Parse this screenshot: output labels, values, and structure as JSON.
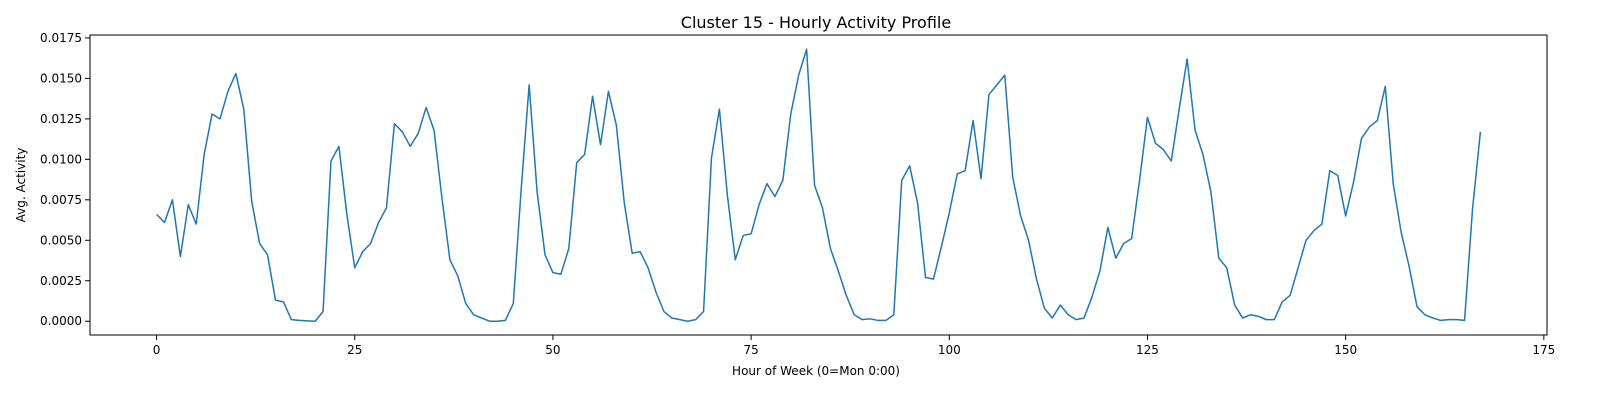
{
  "chart_data": {
    "type": "line",
    "title": "Cluster 15 - Hourly Activity Profile",
    "xlabel": "Hour of Week (0=Mon 0:00)",
    "ylabel": "Avg. Activity",
    "xlim": [
      -8.4,
      175.4
    ],
    "ylim": [
      -0.00085,
      0.01768
    ],
    "xticks": [
      0,
      25,
      50,
      75,
      100,
      125,
      150,
      175
    ],
    "xtick_labels": [
      "0",
      "25",
      "50",
      "75",
      "100",
      "125",
      "150",
      "175"
    ],
    "yticks": [
      0,
      0.0025,
      0.005,
      0.0075,
      0.01,
      0.0125,
      0.015,
      0.0175
    ],
    "ytick_labels": [
      "0.0000",
      "0.0025",
      "0.0050",
      "0.0075",
      "0.0100",
      "0.0125",
      "0.0150",
      "0.0175"
    ],
    "grid": false,
    "legend": "none",
    "line_color": "#1f77b4",
    "series": [
      {
        "x": [
          0,
          1,
          2,
          3,
          4,
          5,
          6,
          7,
          8,
          9,
          10,
          11,
          12,
          13,
          14,
          15,
          16,
          17,
          18,
          19,
          20,
          21,
          22,
          23,
          24,
          25,
          26,
          27,
          28,
          29,
          30,
          31,
          32,
          33,
          34,
          35,
          36,
          37,
          38,
          39,
          40,
          41,
          42,
          43,
          44,
          45,
          46,
          47,
          48,
          49,
          50,
          51,
          52,
          53,
          54,
          55,
          56,
          57,
          58,
          59,
          60,
          61,
          62,
          63,
          64,
          65,
          66,
          67,
          68,
          69,
          70,
          71,
          72,
          73,
          74,
          75,
          76,
          77,
          78,
          79,
          80,
          81,
          82,
          83,
          84,
          85,
          86,
          87,
          88,
          89,
          90,
          91,
          92,
          93,
          94,
          95,
          96,
          97,
          98,
          99,
          100,
          101,
          102,
          103,
          104,
          105,
          106,
          107,
          108,
          109,
          110,
          111,
          112,
          113,
          114,
          115,
          116,
          117,
          118,
          119,
          120,
          121,
          122,
          123,
          124,
          125,
          126,
          127,
          128,
          129,
          130,
          131,
          132,
          133,
          134,
          135,
          136,
          137,
          138,
          139,
          140,
          141,
          142,
          143,
          144,
          145,
          146,
          147,
          148,
          149,
          150,
          151,
          152,
          153,
          154,
          155,
          156,
          157,
          158,
          159,
          160,
          161,
          162,
          163,
          164,
          165,
          166,
          167
        ],
        "values": [
          0.0066,
          0.0061,
          0.0075,
          0.004,
          0.0072,
          0.006,
          0.0103,
          0.0128,
          0.0125,
          0.0142,
          0.0153,
          0.0131,
          0.0074,
          0.0048,
          0.0041,
          0.0013,
          0.0012,
          0.0001,
          5e-05,
          2e-05,
          0.0,
          0.0006,
          0.0099,
          0.0108,
          0.0066,
          0.0033,
          0.0043,
          0.0048,
          0.0061,
          0.007,
          0.0122,
          0.0117,
          0.0108,
          0.0116,
          0.0132,
          0.0118,
          0.0076,
          0.0038,
          0.0028,
          0.0011,
          0.0004,
          0.0002,
          0.0,
          0.0,
          5e-05,
          0.0011,
          0.0082,
          0.0146,
          0.008,
          0.0041,
          0.003,
          0.0029,
          0.0045,
          0.0098,
          0.0103,
          0.0139,
          0.0109,
          0.0142,
          0.0121,
          0.0073,
          0.0042,
          0.0043,
          0.0033,
          0.0018,
          0.0006,
          0.0002,
          0.0001,
          0.0,
          0.0001,
          0.0006,
          0.0101,
          0.0131,
          0.0078,
          0.0038,
          0.0053,
          0.0054,
          0.0072,
          0.0085,
          0.0077,
          0.0087,
          0.0128,
          0.0152,
          0.0168,
          0.0084,
          0.007,
          0.0045,
          0.0031,
          0.0016,
          0.0004,
          0.0001,
          0.00015,
          5e-05,
          5e-05,
          0.0004,
          0.0087,
          0.0096,
          0.0073,
          0.0027,
          0.0026,
          0.0046,
          0.0067,
          0.0091,
          0.0093,
          0.0124,
          0.0088,
          0.014,
          0.0146,
          0.0152,
          0.0089,
          0.0065,
          0.005,
          0.0026,
          0.0008,
          0.0002,
          0.001,
          0.0004,
          0.0001,
          0.0002,
          0.0015,
          0.0031,
          0.0058,
          0.0039,
          0.0048,
          0.0051,
          0.0087,
          0.0126,
          0.011,
          0.0106,
          0.0099,
          0.0131,
          0.0162,
          0.0118,
          0.0103,
          0.008,
          0.0039,
          0.0033,
          0.001,
          0.0002,
          0.0004,
          0.0003,
          0.0001,
          0.0001,
          0.0012,
          0.0016,
          0.0033,
          0.005,
          0.0056,
          0.006,
          0.0093,
          0.009,
          0.0065,
          0.0086,
          0.0113,
          0.012,
          0.0124,
          0.0145,
          0.0085,
          0.0055,
          0.0034,
          0.0009,
          0.0004,
          0.0002,
          5e-05,
          0.0001,
          0.0001,
          5e-05,
          0.0069,
          0.0117
        ]
      }
    ]
  }
}
